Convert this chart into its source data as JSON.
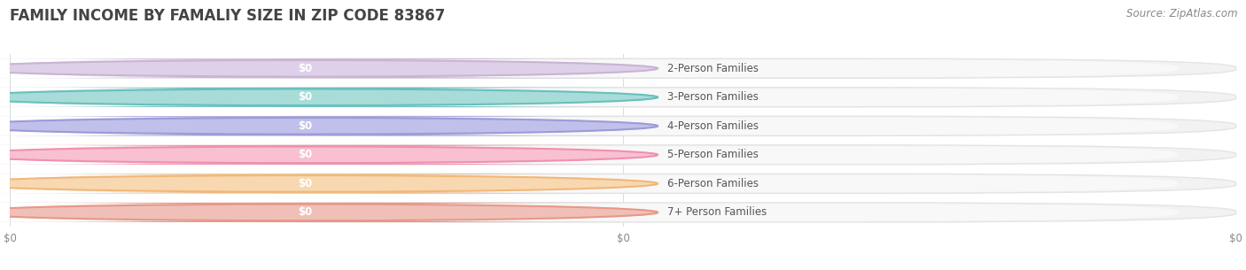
{
  "title": "FAMILY INCOME BY FAMALIY SIZE IN ZIP CODE 83867",
  "source": "Source: ZipAtlas.com",
  "categories": [
    "2-Person Families",
    "3-Person Families",
    "4-Person Families",
    "5-Person Families",
    "6-Person Families",
    "7+ Person Families"
  ],
  "values": [
    0,
    0,
    0,
    0,
    0,
    0
  ],
  "pill_colors": [
    "#c9b4d4",
    "#68c0bc",
    "#9b9bda",
    "#f090b0",
    "#f0b87a",
    "#e89888"
  ],
  "pill_colors_light": [
    "#ddd0e8",
    "#a8dcd8",
    "#c0c0ea",
    "#f8c0d0",
    "#f8d8b0",
    "#f0c0b8"
  ],
  "bar_bg_color": "#f2f2f2",
  "bar_bg_border": "#e4e4e4",
  "bar_bg_inner": "#f8f8f8",
  "value_label_color": "#ffffff",
  "label_color": "#555555",
  "title_color": "#444444",
  "source_color": "#888888",
  "bg_color": "#ffffff",
  "grid_color": "#dddddd",
  "title_fontsize": 12,
  "label_fontsize": 8.5,
  "value_fontsize": 8.5,
  "source_fontsize": 8.5,
  "tick_fontsize": 8.5
}
